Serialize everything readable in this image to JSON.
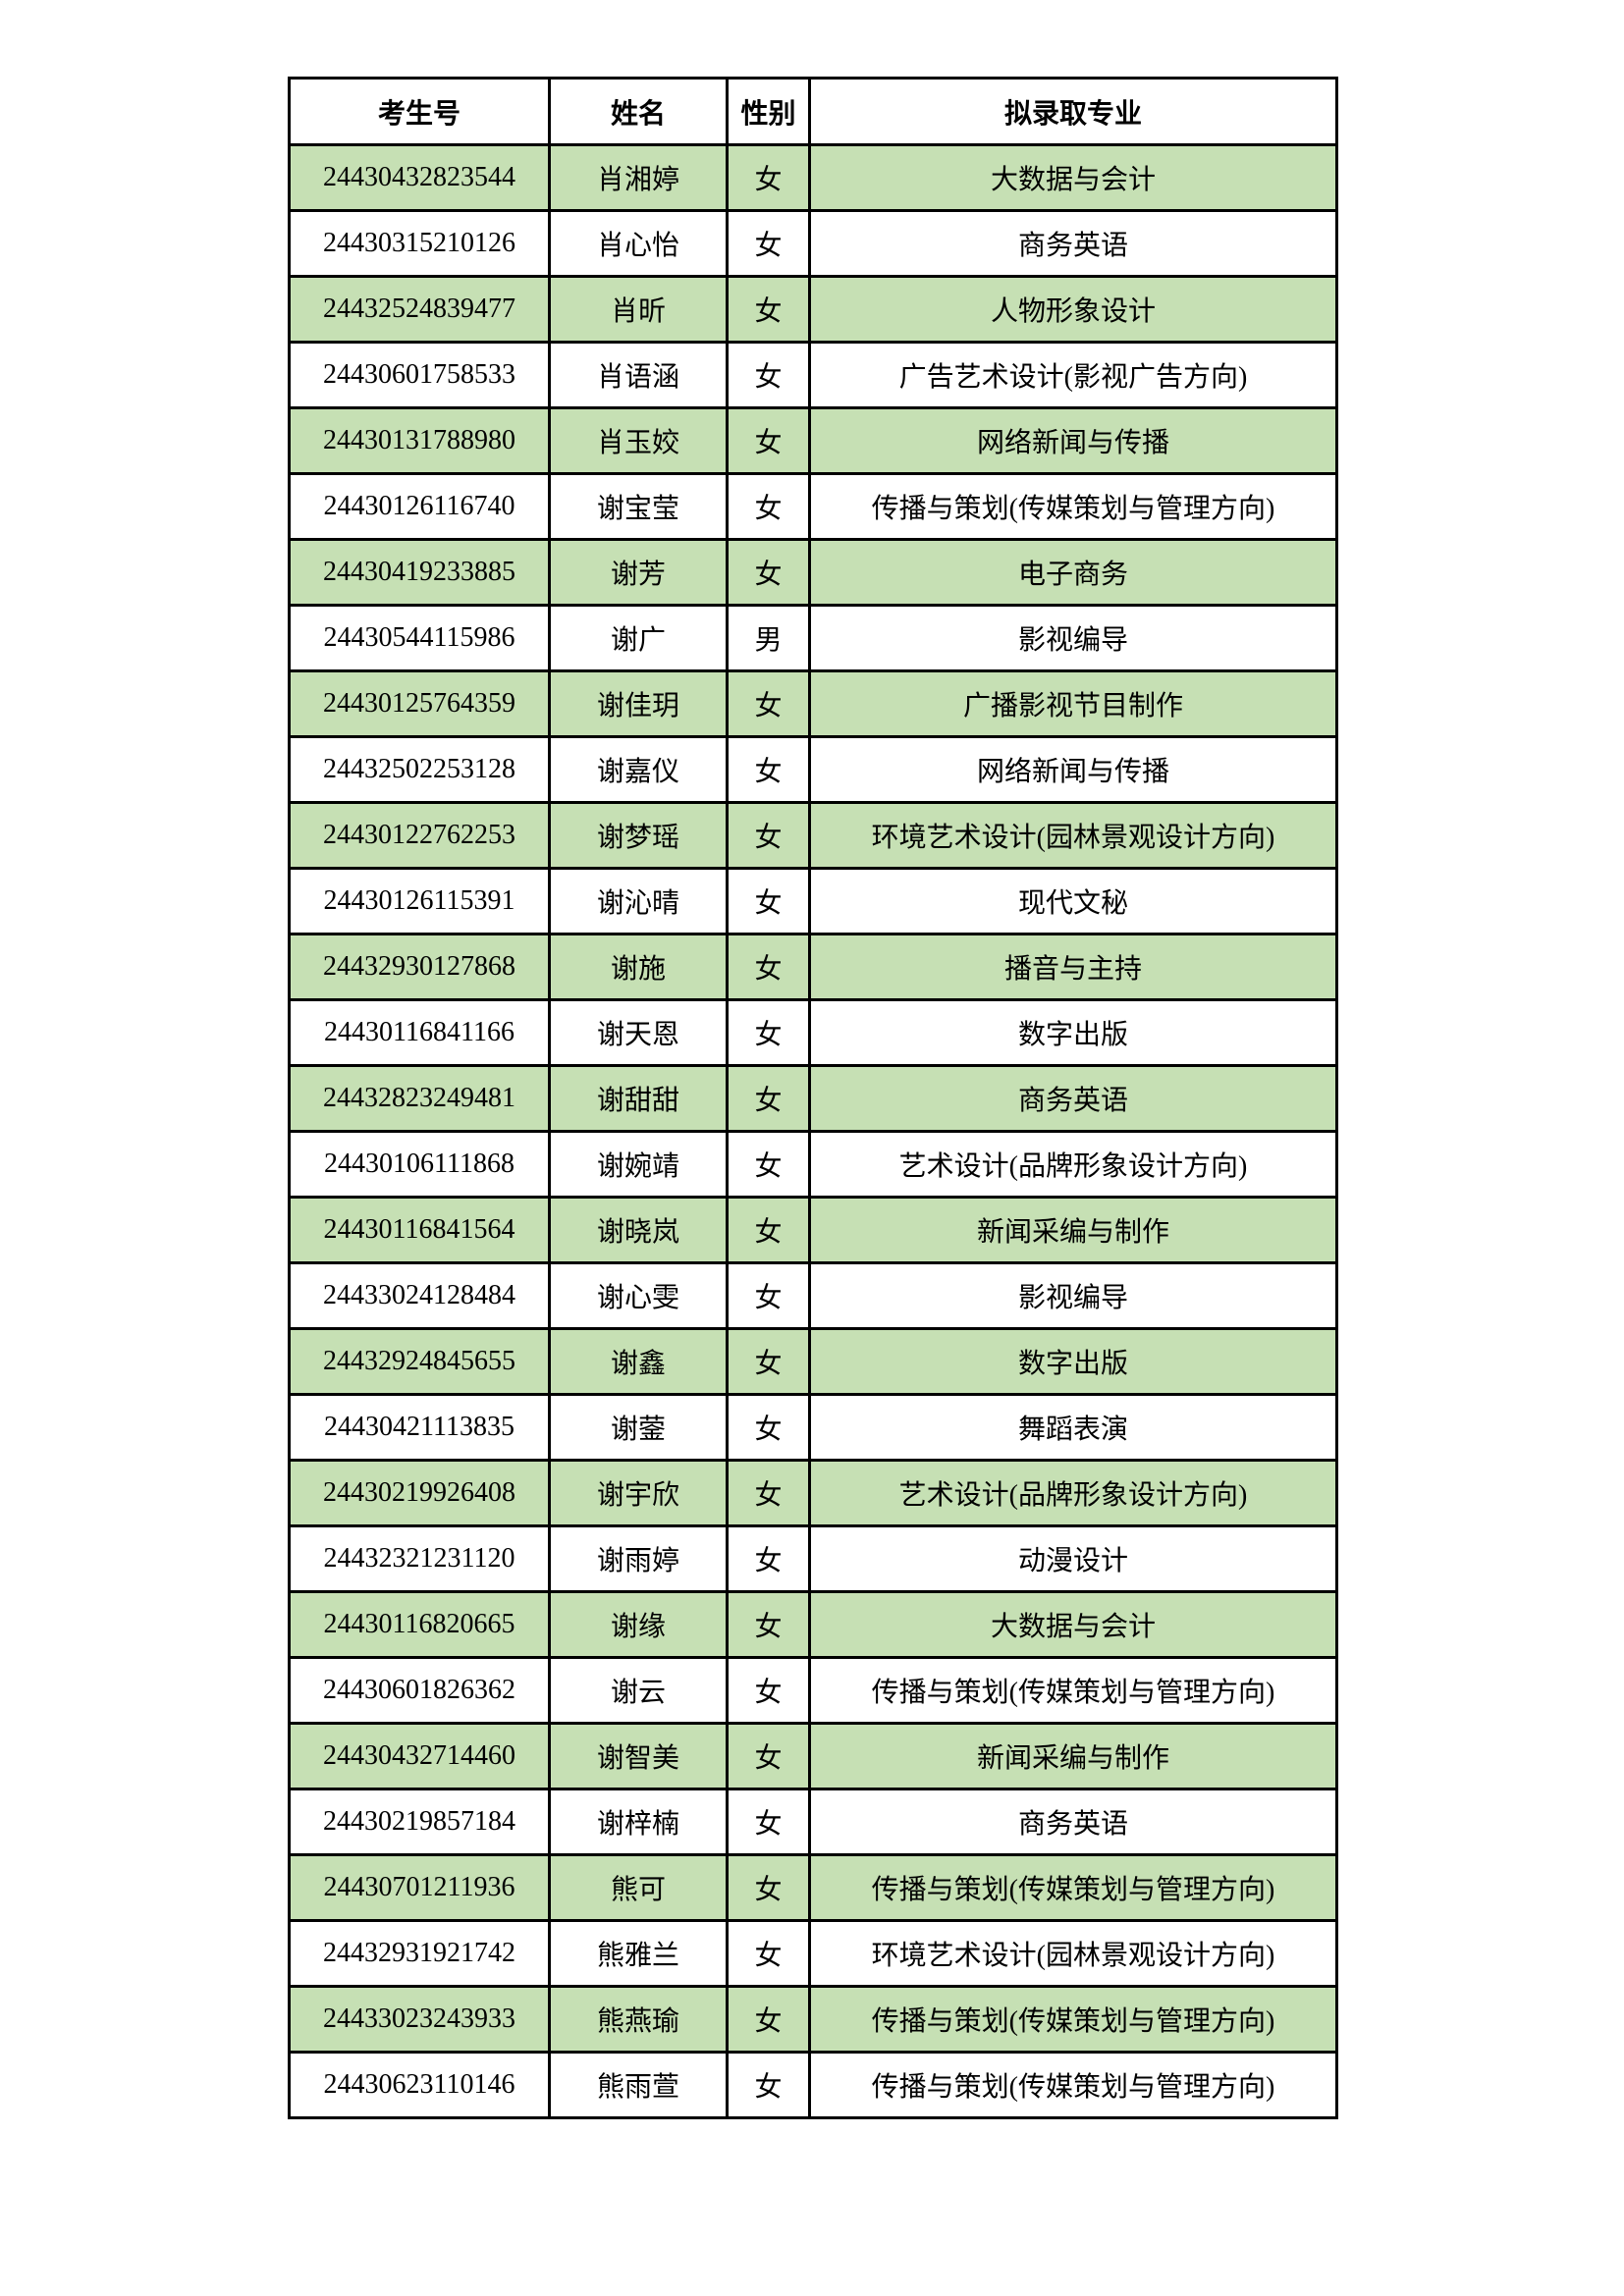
{
  "table": {
    "headers": [
      "考生号",
      "姓名",
      "性别",
      "拟录取专业"
    ],
    "row_highlight_color": "#c6e0b4",
    "rows": [
      [
        "24430432823544",
        "肖湘婷",
        "女",
        "大数据与会计"
      ],
      [
        "24430315210126",
        "肖心怡",
        "女",
        "商务英语"
      ],
      [
        "24432524839477",
        "肖昕",
        "女",
        "人物形象设计"
      ],
      [
        "24430601758533",
        "肖语涵",
        "女",
        "广告艺术设计(影视广告方向)"
      ],
      [
        "24430131788980",
        "肖玉姣",
        "女",
        "网络新闻与传播"
      ],
      [
        "24430126116740",
        "谢宝莹",
        "女",
        "传播与策划(传媒策划与管理方向)"
      ],
      [
        "24430419233885",
        "谢芳",
        "女",
        "电子商务"
      ],
      [
        "24430544115986",
        "谢广",
        "男",
        "影视编导"
      ],
      [
        "24430125764359",
        "谢佳玥",
        "女",
        "广播影视节目制作"
      ],
      [
        "24432502253128",
        "谢嘉仪",
        "女",
        "网络新闻与传播"
      ],
      [
        "24430122762253",
        "谢梦瑶",
        "女",
        "环境艺术设计(园林景观设计方向)"
      ],
      [
        "24430126115391",
        "谢沁晴",
        "女",
        "现代文秘"
      ],
      [
        "24432930127868",
        "谢施",
        "女",
        "播音与主持"
      ],
      [
        "24430116841166",
        "谢天恩",
        "女",
        "数字出版"
      ],
      [
        "24432823249481",
        "谢甜甜",
        "女",
        "商务英语"
      ],
      [
        "24430106111868",
        "谢婉靖",
        "女",
        "艺术设计(品牌形象设计方向)"
      ],
      [
        "24430116841564",
        "谢晓岚",
        "女",
        "新闻采编与制作"
      ],
      [
        "24433024128484",
        "谢心雯",
        "女",
        "影视编导"
      ],
      [
        "24432924845655",
        "谢鑫",
        "女",
        "数字出版"
      ],
      [
        "24430421113835",
        "谢蓥",
        "女",
        "舞蹈表演"
      ],
      [
        "24430219926408",
        "谢宇欣",
        "女",
        "艺术设计(品牌形象设计方向)"
      ],
      [
        "24432321231120",
        "谢雨婷",
        "女",
        "动漫设计"
      ],
      [
        "24430116820665",
        "谢缘",
        "女",
        "大数据与会计"
      ],
      [
        "24430601826362",
        "谢云",
        "女",
        "传播与策划(传媒策划与管理方向)"
      ],
      [
        "24430432714460",
        "谢智美",
        "女",
        "新闻采编与制作"
      ],
      [
        "24430219857184",
        "谢梓楠",
        "女",
        "商务英语"
      ],
      [
        "24430701211936",
        "熊可",
        "女",
        "传播与策划(传媒策划与管理方向)"
      ],
      [
        "24432931921742",
        "熊雅兰",
        "女",
        "环境艺术设计(园林景观设计方向)"
      ],
      [
        "24433023243933",
        "熊燕瑜",
        "女",
        "传播与策划(传媒策划与管理方向)"
      ],
      [
        "24430623110146",
        "熊雨萱",
        "女",
        "传播与策划(传媒策划与管理方向)"
      ]
    ]
  }
}
